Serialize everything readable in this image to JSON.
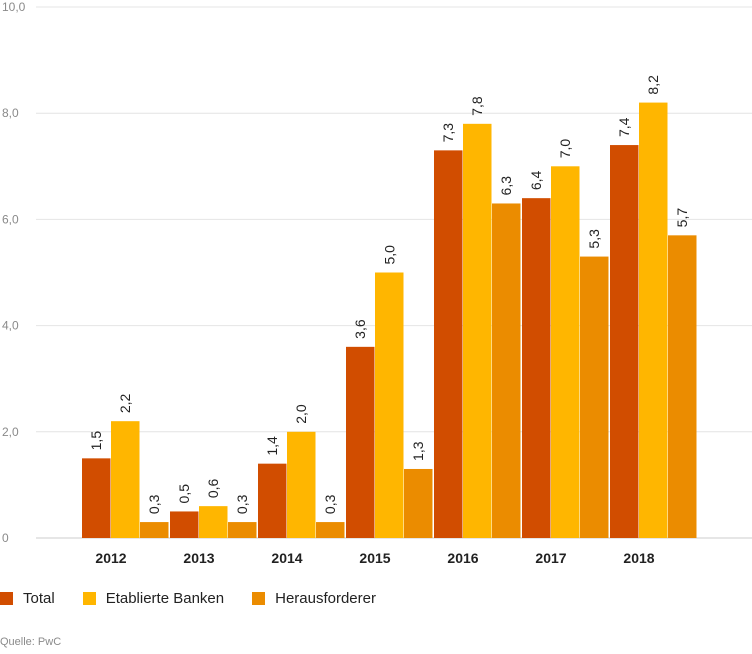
{
  "chart_data": {
    "type": "bar",
    "categories": [
      "2012",
      "2013",
      "2014",
      "2015",
      "2016",
      "2017",
      "2018"
    ],
    "series": [
      {
        "name": "Total",
        "color": "#d14d00",
        "values": [
          1.5,
          0.5,
          1.4,
          3.6,
          7.3,
          6.4,
          7.4
        ],
        "labels": [
          "1,5",
          "0,5",
          "1,4",
          "3,6",
          "7,3",
          "6,4",
          "7,4"
        ]
      },
      {
        "name": "Etablierte Banken",
        "color": "#ffb600",
        "values": [
          2.2,
          0.6,
          2.0,
          5.0,
          7.8,
          7.0,
          8.2
        ],
        "labels": [
          "2,2",
          "0,6",
          "2,0",
          "5,0",
          "7,8",
          "7,0",
          "8,2"
        ]
      },
      {
        "name": "Herausforderer",
        "color": "#eb8c00",
        "values": [
          0.3,
          0.3,
          0.3,
          1.3,
          6.3,
          5.3,
          5.7
        ],
        "labels": [
          "0,3",
          "0,3",
          "0,3",
          "1,3",
          "6,3",
          "5,3",
          "5,7"
        ]
      }
    ],
    "yticks": [
      {
        "value": 0,
        "label": "0"
      },
      {
        "value": 2,
        "label": "2,0"
      },
      {
        "value": 4,
        "label": "4,0"
      },
      {
        "value": 6,
        "label": "6,0"
      },
      {
        "value": 8,
        "label": "8,0"
      },
      {
        "value": 10,
        "label": "10,0"
      }
    ],
    "ylim": [
      0,
      10
    ],
    "grid": true,
    "legend_position": "bottom-left",
    "source": "Quelle: PwC"
  }
}
